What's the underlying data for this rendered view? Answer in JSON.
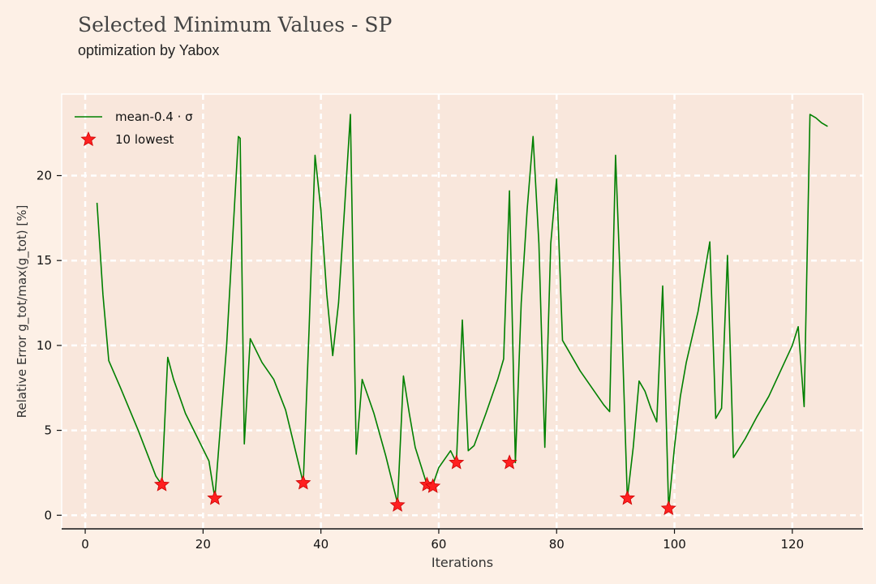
{
  "header": {
    "title": "Selected Minimum Values - SP",
    "subtitle": "optimization by Yabox"
  },
  "chart_data": {
    "type": "line",
    "xlabel": "Iterations",
    "ylabel": "Relative Error g_tot/max(g_tot) [%]",
    "xlim": [
      -4,
      132
    ],
    "ylim": [
      -0.8,
      24.8
    ],
    "xticks": [
      0,
      20,
      40,
      60,
      80,
      100,
      120
    ],
    "yticks": [
      0,
      5,
      10,
      15,
      20
    ],
    "grid": true,
    "legend_position": "top-left",
    "series": [
      {
        "name": "mean-0.4 · σ",
        "style": "line",
        "color": "#008000",
        "x": [
          2,
          3,
          4,
          6,
          9,
          12,
          13,
          14,
          15,
          17,
          21,
          22,
          24,
          26,
          26.3,
          27,
          28,
          30,
          32,
          34,
          37,
          38,
          39,
          40,
          41,
          42,
          43,
          44,
          45,
          46,
          47,
          49,
          51,
          53,
          54,
          55,
          56,
          58,
          59,
          60,
          62,
          63,
          64,
          65,
          66,
          68,
          70,
          71,
          72,
          73,
          74,
          75,
          76,
          77,
          78,
          79,
          80,
          81,
          82,
          84,
          86,
          88,
          89,
          90,
          91,
          92,
          93,
          94,
          95,
          96,
          97,
          98,
          99,
          100,
          101,
          102,
          104,
          106,
          107,
          108,
          109,
          110,
          112,
          114,
          116,
          118,
          120,
          121,
          122,
          123,
          124,
          125,
          126
        ],
        "y": [
          18.4,
          13,
          9.1,
          7.5,
          5,
          2.3,
          1.8,
          9.3,
          8,
          6,
          3.2,
          1,
          10,
          22.3,
          22.2,
          4.2,
          10.4,
          9,
          8,
          6.2,
          1.9,
          11,
          21.2,
          18,
          13,
          9.4,
          12.5,
          18,
          23.6,
          3.6,
          8,
          6,
          3.5,
          0.7,
          8.2,
          6,
          4,
          1.8,
          1.8,
          2.8,
          3.8,
          3.1,
          11.5,
          3.8,
          4.1,
          6,
          8,
          9.2,
          19.1,
          3.1,
          12.5,
          18,
          22.3,
          16,
          4,
          16,
          19.8,
          10.3,
          9.7,
          8.5,
          7.5,
          6.5,
          6.1,
          21.2,
          12,
          1,
          4,
          7.9,
          7.3,
          6.3,
          5.5,
          13.5,
          0.4,
          4,
          7,
          9,
          12,
          16.1,
          5.7,
          6.3,
          15.3,
          3.4,
          4.5,
          5.8,
          7,
          8.5,
          10,
          11.1,
          6.4,
          23.6,
          23.4,
          23.1,
          22.9
        ]
      },
      {
        "name": "10 lowest",
        "style": "scatter",
        "color": "#ff2020",
        "x": [
          13,
          22,
          37,
          53,
          58,
          59,
          63,
          72,
          92,
          99
        ],
        "y": [
          1.8,
          1.0,
          1.9,
          0.6,
          1.8,
          1.7,
          3.1,
          3.1,
          1.0,
          0.4
        ]
      }
    ]
  }
}
